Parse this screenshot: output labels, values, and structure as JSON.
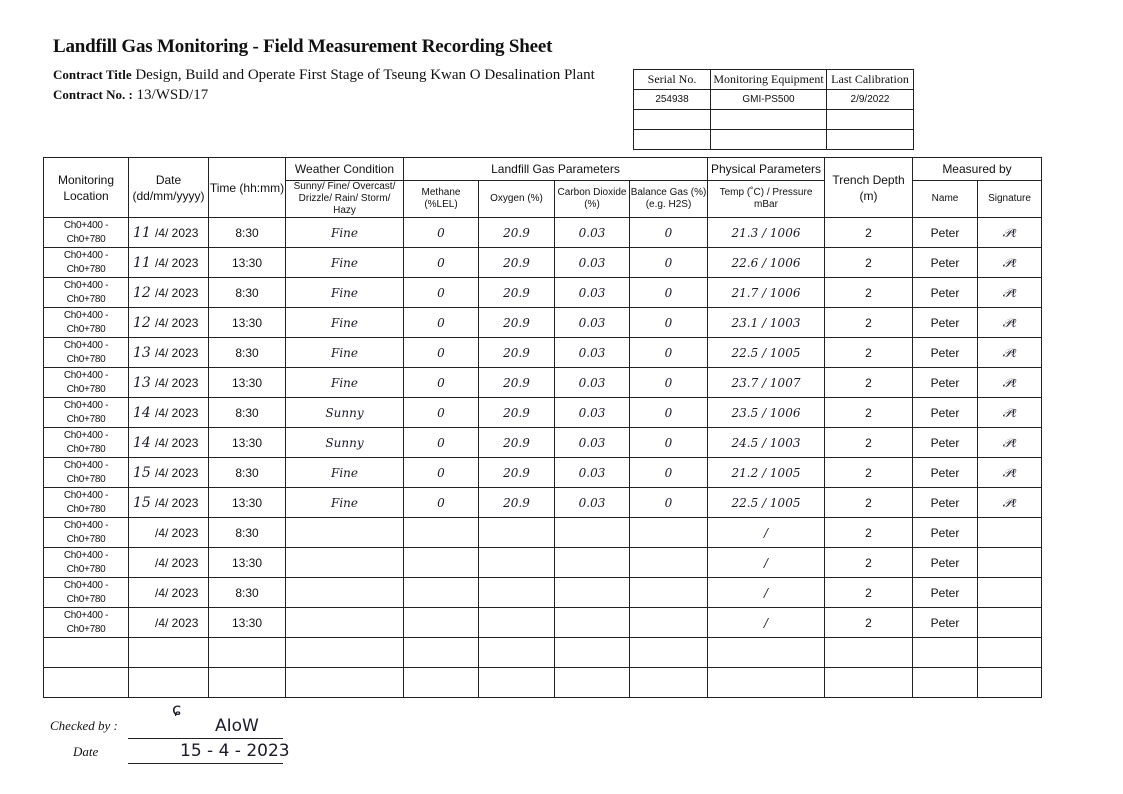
{
  "title": "Landfill Gas Monitoring - Field Measurement Recording Sheet",
  "contract": {
    "title_label": "Contract Title",
    "title_value": "Design, Build and Operate First Stage of Tseung Kwan O Desalination Plant",
    "no_label": "Contract No. :",
    "no_value": "13/WSD/17"
  },
  "equipment": {
    "headers": [
      "Serial No.",
      "Monitoring Equipment",
      "Last Calibration"
    ],
    "rows": [
      [
        "254938",
        "GMI-PS500",
        "2/9/2022"
      ],
      [
        "",
        "",
        ""
      ],
      [
        "",
        "",
        ""
      ]
    ]
  },
  "table": {
    "headers": {
      "location": "Monitoring Location",
      "date": "Date (dd/mm/yyyy)",
      "time": "Time (hh:mm)",
      "weather_group": "Weather Condition",
      "weather": "Sunny/ Fine/ Overcast/ Drizzle/ Rain/ Storm/ Hazy",
      "gas_group": "Landfill Gas Parameters",
      "methane": "Methane (%LEL)",
      "oxygen": "Oxygen (%)",
      "co2": "Carbon Dioxide (%)",
      "balance": "Balance Gas (%) (e.g. H2S)",
      "physical_group": "Physical Parameters",
      "temp_pressure": "Temp (˚C) / Pressure mBar",
      "trench": "Trench Depth (m)",
      "measured_group": "Measured by",
      "name": "Name",
      "signature": "Signature"
    },
    "rows": [
      {
        "location": "Ch0+400 - Ch0+780",
        "day": "11",
        "date": "/4/ 2023",
        "time": "8:30",
        "weather": "Fine",
        "methane": "0",
        "oxygen": "20.9",
        "co2": "0.03",
        "balance": "0",
        "tp": "21.3 / 1006",
        "trench": "2",
        "name": "Peter",
        "signature": "signed"
      },
      {
        "location": "Ch0+400 - Ch0+780",
        "day": "11",
        "date": "/4/ 2023",
        "time": "13:30",
        "weather": "Fine",
        "methane": "0",
        "oxygen": "20.9",
        "co2": "0.03",
        "balance": "0",
        "tp": "22.6 / 1006",
        "trench": "2",
        "name": "Peter",
        "signature": "signed"
      },
      {
        "location": "Ch0+400 - Ch0+780",
        "day": "12",
        "date": "/4/ 2023",
        "time": "8:30",
        "weather": "Fine",
        "methane": "0",
        "oxygen": "20.9",
        "co2": "0.03",
        "balance": "0",
        "tp": "21.7 / 1006",
        "trench": "2",
        "name": "Peter",
        "signature": "signed"
      },
      {
        "location": "Ch0+400 - Ch0+780",
        "day": "12",
        "date": "/4/ 2023",
        "time": "13:30",
        "weather": "Fine",
        "methane": "0",
        "oxygen": "20.9",
        "co2": "0.03",
        "balance": "0",
        "tp": "23.1 / 1003",
        "trench": "2",
        "name": "Peter",
        "signature": "signed"
      },
      {
        "location": "Ch0+400 - Ch0+780",
        "day": "13",
        "date": "/4/ 2023",
        "time": "8:30",
        "weather": "Fine",
        "methane": "0",
        "oxygen": "20.9",
        "co2": "0.03",
        "balance": "0",
        "tp": "22.5 / 1005",
        "trench": "2",
        "name": "Peter",
        "signature": "signed"
      },
      {
        "location": "Ch0+400 - Ch0+780",
        "day": "13",
        "date": "/4/ 2023",
        "time": "13:30",
        "weather": "Fine",
        "methane": "0",
        "oxygen": "20.9",
        "co2": "0.03",
        "balance": "0",
        "tp": "23.7 / 1007",
        "trench": "2",
        "name": "Peter",
        "signature": "signed"
      },
      {
        "location": "Ch0+400 - Ch0+780",
        "day": "14",
        "date": "/4/ 2023",
        "time": "8:30",
        "weather": "Sunny",
        "methane": "0",
        "oxygen": "20.9",
        "co2": "0.03",
        "balance": "0",
        "tp": "23.5 / 1006",
        "trench": "2",
        "name": "Peter",
        "signature": "signed"
      },
      {
        "location": "Ch0+400 - Ch0+780",
        "day": "14",
        "date": "/4/ 2023",
        "time": "13:30",
        "weather": "Sunny",
        "methane": "0",
        "oxygen": "20.9",
        "co2": "0.03",
        "balance": "0",
        "tp": "24.5 / 1003",
        "trench": "2",
        "name": "Peter",
        "signature": "signed"
      },
      {
        "location": "Ch0+400 - Ch0+780",
        "day": "15",
        "date": "/4/ 2023",
        "time": "8:30",
        "weather": "Fine",
        "methane": "0",
        "oxygen": "20.9",
        "co2": "0.03",
        "balance": "0",
        "tp": "21.2 / 1005",
        "trench": "2",
        "name": "Peter",
        "signature": "signed"
      },
      {
        "location": "Ch0+400 - Ch0+780",
        "day": "15",
        "date": "/4/ 2023",
        "time": "13:30",
        "weather": "Fine",
        "methane": "0",
        "oxygen": "20.9",
        "co2": "0.03",
        "balance": "0",
        "tp": "22.5 / 1005",
        "trench": "2",
        "name": "Peter",
        "signature": "signed"
      },
      {
        "location": "Ch0+400 - Ch0+780",
        "day": "",
        "date": "/4/ 2023",
        "time": "8:30",
        "weather": "",
        "methane": "",
        "oxygen": "",
        "co2": "",
        "balance": "",
        "tp": "/",
        "trench": "2",
        "name": "Peter",
        "signature": ""
      },
      {
        "location": "Ch0+400 - Ch0+780",
        "day": "",
        "date": "/4/ 2023",
        "time": "13:30",
        "weather": "",
        "methane": "",
        "oxygen": "",
        "co2": "",
        "balance": "",
        "tp": "/",
        "trench": "2",
        "name": "Peter",
        "signature": ""
      },
      {
        "location": "Ch0+400 - Ch0+780",
        "day": "",
        "date": "/4/ 2023",
        "time": "8:30",
        "weather": "",
        "methane": "",
        "oxygen": "",
        "co2": "",
        "balance": "",
        "tp": "/",
        "trench": "2",
        "name": "Peter",
        "signature": ""
      },
      {
        "location": "Ch0+400 - Ch0+780",
        "day": "",
        "date": "/4/ 2023",
        "time": "13:30",
        "weather": "",
        "methane": "",
        "oxygen": "",
        "co2": "",
        "balance": "",
        "tp": "/",
        "trench": "2",
        "name": "Peter",
        "signature": ""
      },
      {
        "location": "",
        "day": "",
        "date": "",
        "time": "",
        "weather": "",
        "methane": "",
        "oxygen": "",
        "co2": "",
        "balance": "",
        "tp": "",
        "trench": "",
        "name": "",
        "signature": ""
      },
      {
        "location": "",
        "day": "",
        "date": "",
        "time": "",
        "weather": "",
        "methane": "",
        "oxygen": "",
        "co2": "",
        "balance": "",
        "tp": "",
        "trench": "",
        "name": "",
        "signature": ""
      }
    ]
  },
  "footer": {
    "checked_label": "Checked by :",
    "checked_value": "AIoW",
    "date_label": "Date",
    "date_value": "15 - 4 - 2023"
  }
}
